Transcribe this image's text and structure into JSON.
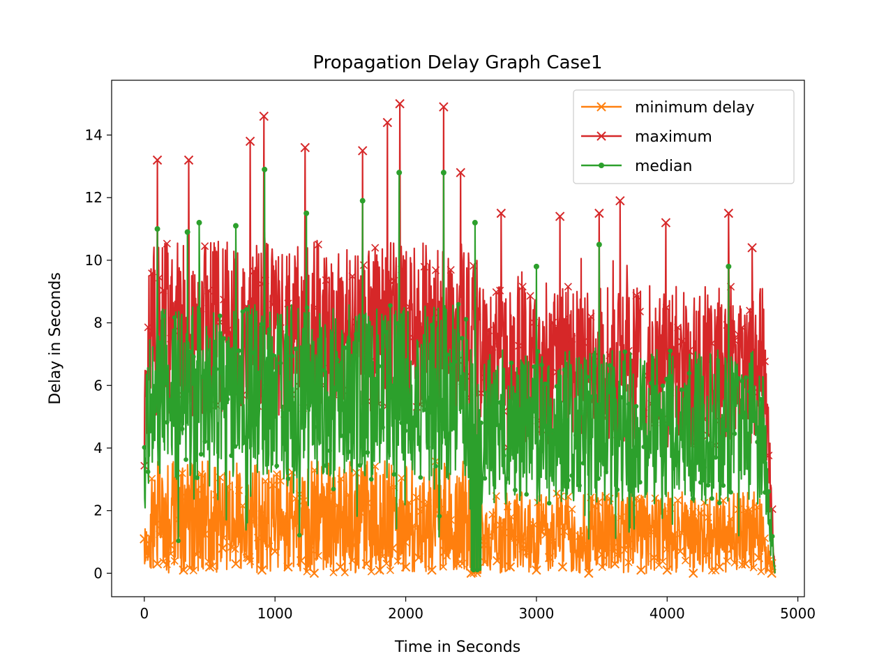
{
  "chart_data": {
    "type": "line",
    "title": "Propagation Delay Graph Case1",
    "xlabel": "Time in Seconds",
    "ylabel": "Delay in Seconds",
    "xlim": [
      -250,
      5050
    ],
    "ylim": [
      -0.75,
      15.75
    ],
    "x_ticks": [
      0,
      1000,
      2000,
      3000,
      4000,
      5000
    ],
    "x_tick_labels": [
      "0",
      "1000",
      "2000",
      "3000",
      "4000",
      "5000"
    ],
    "y_ticks": [
      0,
      2,
      4,
      6,
      8,
      10,
      12,
      14
    ],
    "y_tick_labels": [
      "0",
      "2",
      "4",
      "6",
      "8",
      "10",
      "12",
      "14"
    ],
    "grid": false,
    "legend_position": "top-right",
    "x_range": [
      0,
      4825
    ],
    "series": [
      {
        "name": "minimum delay",
        "color": "#ff7f0e",
        "marker": "x",
        "points": [
          [
            0,
            1.1
          ],
          [
            100,
            0.3
          ],
          [
            200,
            0.9
          ],
          [
            300,
            0.1
          ],
          [
            400,
            0.6
          ],
          [
            500,
            0.2
          ],
          [
            600,
            0.8
          ],
          [
            700,
            0.3
          ],
          [
            800,
            0.5
          ],
          [
            900,
            0.1
          ],
          [
            1000,
            0.7
          ],
          [
            1100,
            0.2
          ],
          [
            1200,
            0.4
          ],
          [
            1300,
            0.0
          ],
          [
            1400,
            0.6
          ],
          [
            1500,
            0.2
          ],
          [
            1600,
            0.9
          ],
          [
            1700,
            0.3
          ],
          [
            1800,
            0.1
          ],
          [
            1900,
            0.8
          ],
          [
            2000,
            0.2
          ],
          [
            2100,
            0.5
          ],
          [
            2200,
            0.1
          ],
          [
            2300,
            0.7
          ],
          [
            2400,
            0.3
          ],
          [
            2500,
            0.0
          ],
          [
            2600,
            0.9
          ],
          [
            2700,
            0.4
          ],
          [
            2800,
            0.2
          ],
          [
            2900,
            0.8
          ],
          [
            3000,
            0.1
          ],
          [
            3100,
            0.5
          ],
          [
            3200,
            0.2
          ],
          [
            3300,
            0.7
          ],
          [
            3400,
            0.0
          ],
          [
            3500,
            0.6
          ],
          [
            3600,
            0.3
          ],
          [
            3700,
            0.9
          ],
          [
            3800,
            0.1
          ],
          [
            3900,
            0.5
          ],
          [
            4000,
            0.1
          ],
          [
            4100,
            0.7
          ],
          [
            4200,
            0.0
          ],
          [
            4300,
            0.6
          ],
          [
            4400,
            0.2
          ],
          [
            4500,
            0.8
          ],
          [
            4600,
            0.3
          ],
          [
            4700,
            0.5
          ],
          [
            4800,
            0.0
          ]
        ]
      },
      {
        "name": "maximum",
        "color": "#d62728",
        "marker": "x",
        "points": [
          [
            100,
            13.2
          ],
          [
            340,
            13.2
          ],
          [
            810,
            13.8
          ],
          [
            915,
            14.6
          ],
          [
            1230,
            13.6
          ],
          [
            1670,
            13.5
          ],
          [
            1860,
            14.4
          ],
          [
            1955,
            15.0
          ],
          [
            2290,
            14.9
          ],
          [
            2420,
            12.8
          ],
          [
            2730,
            11.5
          ],
          [
            3180,
            11.4
          ],
          [
            3480,
            11.5
          ],
          [
            3640,
            11.9
          ],
          [
            3990,
            11.2
          ],
          [
            4470,
            11.5
          ],
          [
            4650,
            10.4
          ]
        ]
      },
      {
        "name": "median",
        "color": "#2ca02c",
        "marker": "dot",
        "points": [
          [
            100,
            11.0
          ],
          [
            330,
            10.9
          ],
          [
            420,
            11.2
          ],
          [
            700,
            11.1
          ],
          [
            920,
            12.9
          ],
          [
            1240,
            11.5
          ],
          [
            1670,
            11.9
          ],
          [
            1950,
            12.8
          ],
          [
            2290,
            12.8
          ],
          [
            2530,
            11.2
          ],
          [
            3000,
            9.8
          ],
          [
            3480,
            10.5
          ],
          [
            4470,
            9.8
          ]
        ]
      }
    ]
  }
}
